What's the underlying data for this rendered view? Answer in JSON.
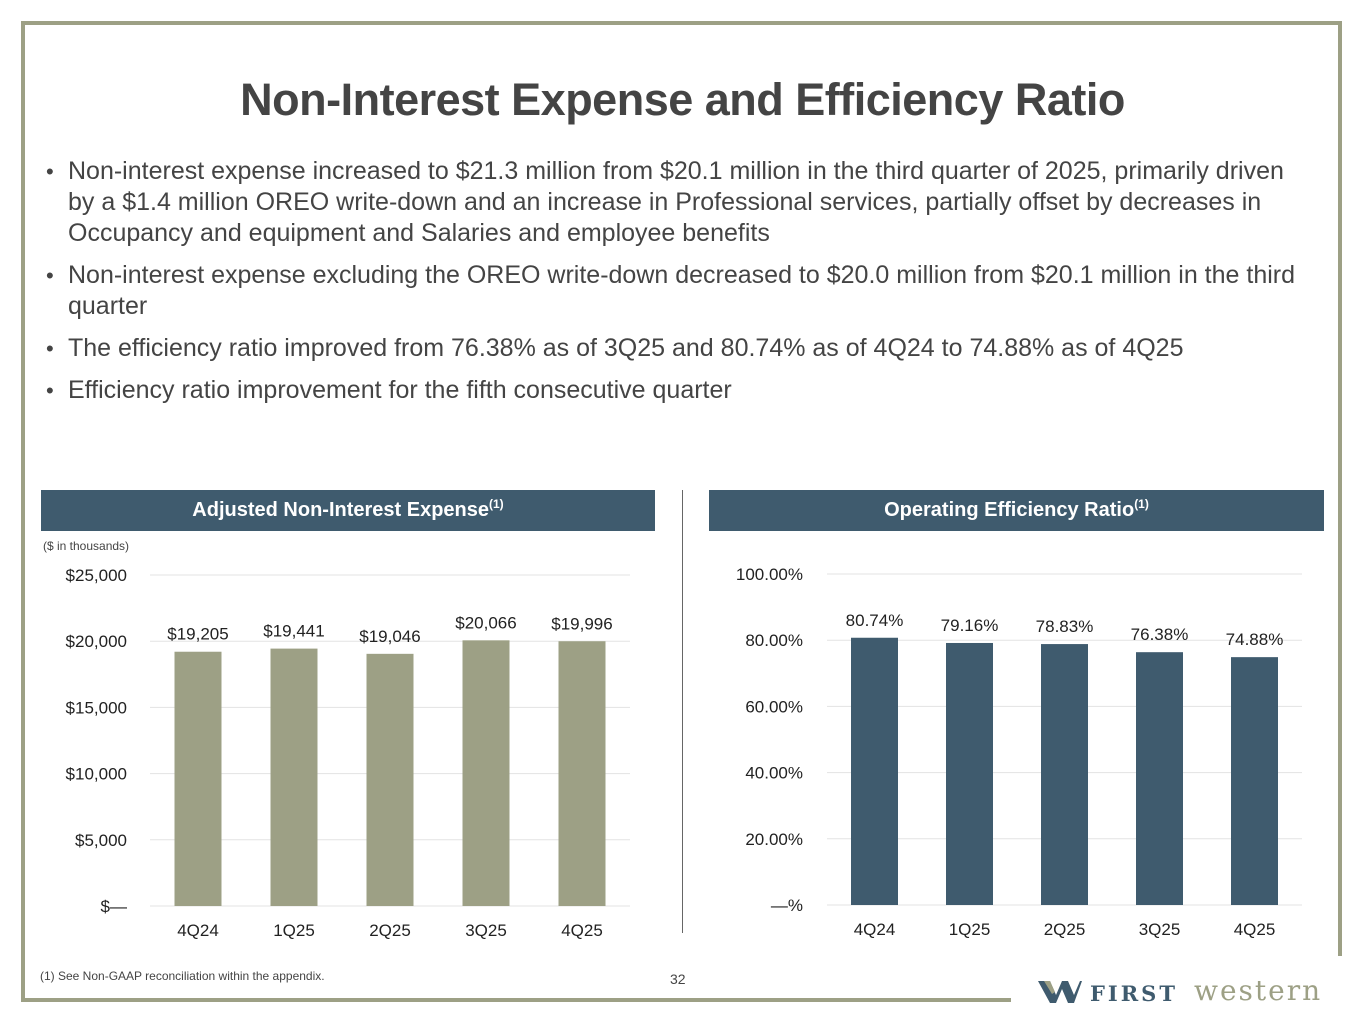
{
  "slide": {
    "title": "Non-Interest Expense and Efficiency Ratio",
    "bullets": [
      "Non-interest expense increased to $21.3 million from $20.1 million in the third quarter of 2025, primarily driven by a $1.4 million OREO write-down and an increase in Professional services, partially offset by decreases in Occupancy and equipment and Salaries and employee benefits",
      "Non-interest expense excluding the OREO write-down decreased to $20.0 million from $20.1 million in the third quarter",
      "The efficiency ratio improved from 76.38% as of 3Q25 and 80.74% as of 4Q24 to 74.88% as of 4Q25",
      "Efficiency ratio improvement for the fifth consecutive quarter"
    ],
    "footnote": "(1)  See Non-GAAP reconciliation within the appendix.",
    "page_number": "32",
    "logo": {
      "word1": "FIRST",
      "word2": "western"
    },
    "colors": {
      "frame": "#9da085",
      "header": "#3f5b6e",
      "bar_left": "#9da085",
      "bar_right": "#3f5b6e"
    }
  },
  "chart_data": [
    {
      "type": "bar",
      "title": "Adjusted Non-Interest Expense",
      "title_superscript": "(1)",
      "units_note": "($ in thousands)",
      "categories": [
        "4Q24",
        "1Q25",
        "2Q25",
        "3Q25",
        "4Q25"
      ],
      "values": [
        19205,
        19441,
        19046,
        20066,
        19996
      ],
      "value_labels": [
        "$19,205",
        "$19,441",
        "$19,046",
        "$20,066",
        "$19,996"
      ],
      "yticks": [
        0,
        5000,
        10000,
        15000,
        20000,
        25000
      ],
      "ytick_labels": [
        "$—",
        "$5,000",
        "$10,000",
        "$15,000",
        "$20,000",
        "$25,000"
      ],
      "ylim": [
        0,
        25000
      ],
      "grid": true,
      "color": "#9da085"
    },
    {
      "type": "bar",
      "title": "Operating Efficiency Ratio",
      "title_superscript": "(1)",
      "categories": [
        "4Q24",
        "1Q25",
        "2Q25",
        "3Q25",
        "4Q25"
      ],
      "values": [
        80.74,
        79.16,
        78.83,
        76.38,
        74.88
      ],
      "value_labels": [
        "80.74%",
        "79.16%",
        "78.83%",
        "76.38%",
        "74.88%"
      ],
      "yticks": [
        0,
        20,
        40,
        60,
        80,
        100
      ],
      "ytick_labels": [
        "—%",
        "20.00%",
        "40.00%",
        "60.00%",
        "80.00%",
        "100.00%"
      ],
      "ylim": [
        0,
        100
      ],
      "grid": true,
      "color": "#3f5b6e"
    }
  ]
}
